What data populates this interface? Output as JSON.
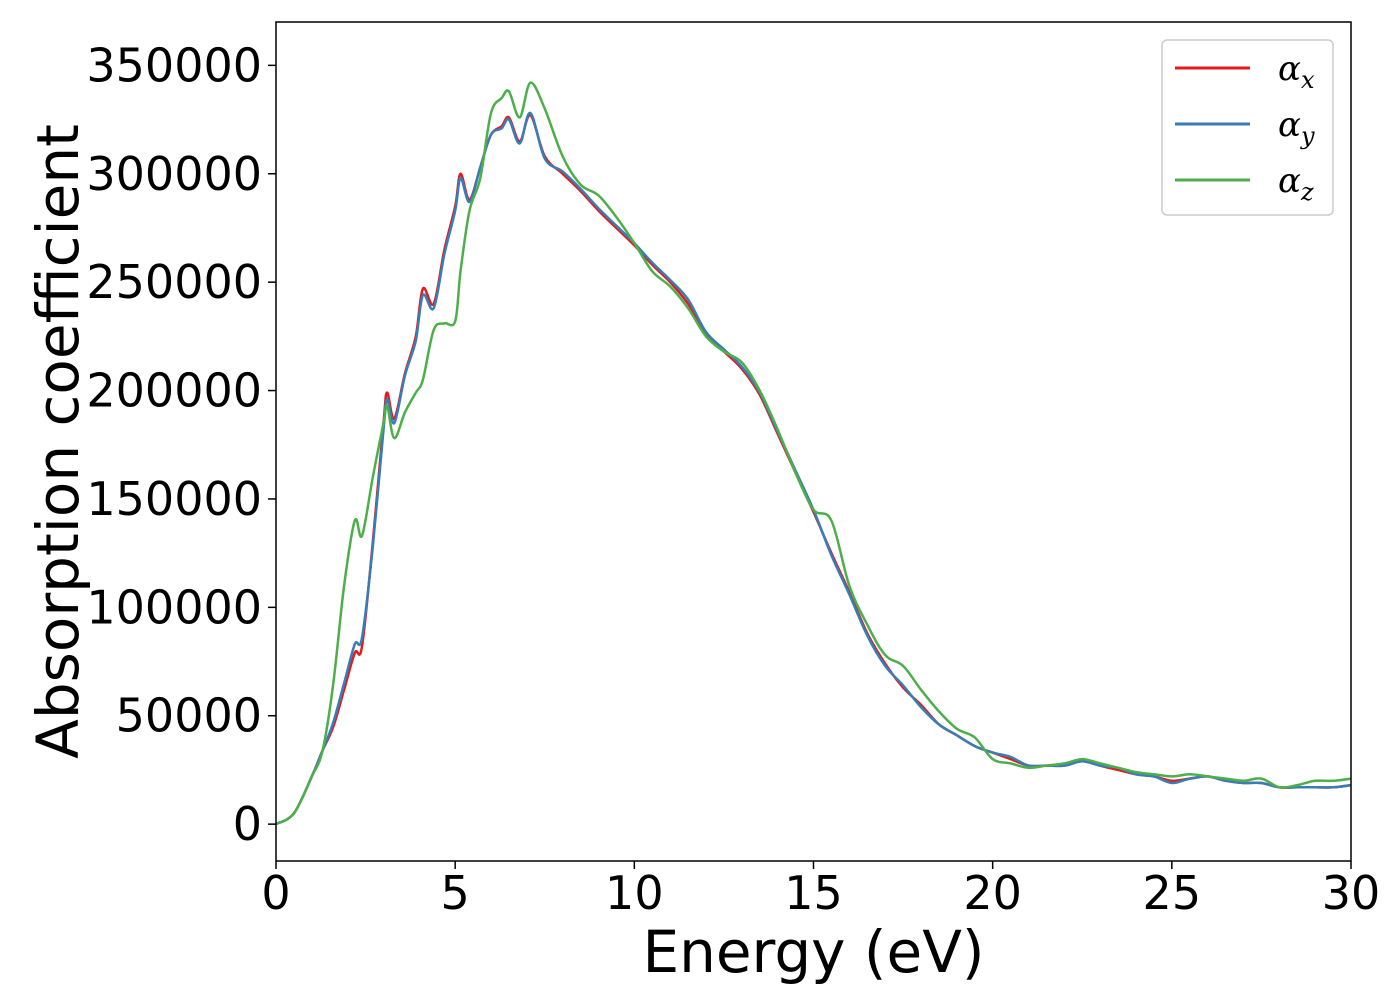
{
  "chart_data": {
    "type": "line",
    "title": "",
    "xlabel": "Energy (eV)",
    "ylabel": "Absorption coefficient",
    "xlim": [
      0,
      30
    ],
    "ylim": [
      -17000,
      370000
    ],
    "xticks": [
      0,
      5,
      10,
      15,
      20,
      25,
      30
    ],
    "yticks": [
      0,
      50000,
      100000,
      150000,
      200000,
      250000,
      300000,
      350000
    ],
    "grid": false,
    "legend_position": "top-right",
    "series": [
      {
        "name": "α_x",
        "legend_symbol": "α",
        "legend_sub": "x",
        "color": "#e41a1c",
        "x": [
          0,
          0.5,
          1,
          1.3,
          1.6,
          1.9,
          2.2,
          2.4,
          2.7,
          3,
          3.1,
          3.3,
          3.6,
          3.9,
          4.1,
          4.4,
          4.7,
          5,
          5.15,
          5.4,
          5.7,
          6,
          6.3,
          6.5,
          6.8,
          7.1,
          7.5,
          8,
          8.5,
          9,
          9.5,
          10,
          10.5,
          11,
          11.5,
          12,
          12.5,
          13,
          13.5,
          14,
          14.5,
          15,
          15.5,
          16,
          16.5,
          17,
          17.5,
          18,
          18.5,
          19,
          19.5,
          20,
          20.5,
          21,
          21.5,
          22,
          22.5,
          23,
          23.5,
          24,
          24.5,
          25,
          25.5,
          26,
          26.5,
          27,
          27.5,
          28,
          28.5,
          29,
          29.5,
          30
        ],
        "values": [
          0,
          5000,
          22000,
          34000,
          45000,
          62000,
          79000,
          82000,
          130000,
          185000,
          199000,
          187000,
          208000,
          225000,
          247000,
          240000,
          265000,
          285000,
          300000,
          288000,
          303000,
          318000,
          322000,
          326000,
          315000,
          327000,
          308000,
          300000,
          292000,
          283000,
          275000,
          267000,
          258000,
          250000,
          240000,
          226000,
          218000,
          210000,
          198000,
          180000,
          162000,
          144000,
          125000,
          107000,
          88000,
          74000,
          63000,
          55000,
          46000,
          41000,
          36000,
          33000,
          30000,
          27000,
          27000,
          27000,
          29000,
          27000,
          25000,
          23000,
          22000,
          20000,
          21000,
          22000,
          20000,
          19000,
          19000,
          17000,
          17000,
          17000,
          17000,
          18000
        ]
      },
      {
        "name": "α_y",
        "legend_symbol": "α",
        "legend_sub": "y",
        "color": "#377eb8",
        "x": [
          0,
          0.5,
          1,
          1.3,
          1.6,
          1.9,
          2.2,
          2.4,
          2.7,
          3,
          3.1,
          3.3,
          3.6,
          3.9,
          4.1,
          4.4,
          4.7,
          5,
          5.15,
          5.4,
          5.7,
          6,
          6.3,
          6.5,
          6.8,
          7.1,
          7.5,
          8,
          8.5,
          9,
          9.5,
          10,
          10.5,
          11,
          11.5,
          12,
          12.5,
          13,
          13.5,
          14,
          14.5,
          15,
          15.5,
          16,
          16.5,
          17,
          17.5,
          18,
          18.5,
          19,
          19.5,
          20,
          20.5,
          21,
          21.5,
          22,
          22.5,
          23,
          23.5,
          24,
          24.5,
          25,
          25.5,
          26,
          26.5,
          27,
          27.5,
          28,
          28.5,
          29,
          29.5,
          30
        ],
        "values": [
          0,
          5000,
          22000,
          34000,
          47000,
          65000,
          83000,
          86000,
          128000,
          182000,
          196000,
          185000,
          207000,
          223000,
          244000,
          238000,
          263000,
          283000,
          298000,
          287000,
          303000,
          318000,
          321000,
          325000,
          314000,
          328000,
          307000,
          301000,
          293000,
          284000,
          276000,
          268000,
          259000,
          251000,
          242000,
          227000,
          219000,
          211000,
          199000,
          181000,
          163000,
          145000,
          124000,
          106000,
          87000,
          73000,
          64000,
          54000,
          46000,
          41000,
          36000,
          33000,
          31000,
          27000,
          27000,
          27000,
          29000,
          27000,
          26000,
          23000,
          22000,
          19000,
          21000,
          22000,
          20000,
          19000,
          19000,
          17000,
          17000,
          17000,
          17000,
          18000
        ]
      },
      {
        "name": "α_z",
        "legend_symbol": "α",
        "legend_sub": "z",
        "color": "#4daf4a",
        "x": [
          0,
          0.5,
          1,
          1.3,
          1.6,
          1.9,
          2.2,
          2.4,
          2.7,
          3,
          3.1,
          3.3,
          3.6,
          3.9,
          4.1,
          4.4,
          4.7,
          5,
          5.15,
          5.4,
          5.7,
          6,
          6.3,
          6.5,
          6.8,
          7.1,
          7.5,
          8,
          8.5,
          9,
          9.5,
          10,
          10.5,
          11,
          11.5,
          12,
          12.5,
          13,
          13.5,
          14,
          14.5,
          15,
          15.5,
          16,
          16.5,
          17,
          17.5,
          18,
          18.5,
          19,
          19.5,
          20,
          20.5,
          21,
          21.5,
          22,
          22.5,
          23,
          23.5,
          24,
          24.5,
          25,
          25.5,
          26,
          26.5,
          27,
          27.5,
          28,
          28.5,
          29,
          29.5,
          30
        ],
        "values": [
          0,
          5000,
          22000,
          34000,
          65000,
          110000,
          140000,
          133000,
          160000,
          185000,
          193000,
          178000,
          190000,
          199000,
          205000,
          228000,
          231000,
          232000,
          255000,
          283000,
          298000,
          328000,
          335000,
          338000,
          326000,
          342000,
          330000,
          308000,
          295000,
          290000,
          280000,
          268000,
          255000,
          248000,
          238000,
          225000,
          218000,
          213000,
          200000,
          182000,
          162000,
          145000,
          140000,
          110000,
          92000,
          78000,
          73000,
          62000,
          52000,
          44000,
          40000,
          30000,
          28000,
          26000,
          27000,
          28000,
          30000,
          28000,
          26000,
          24000,
          23000,
          22000,
          23000,
          22000,
          21000,
          20000,
          21000,
          17000,
          18000,
          20000,
          20000,
          21000
        ]
      }
    ]
  }
}
